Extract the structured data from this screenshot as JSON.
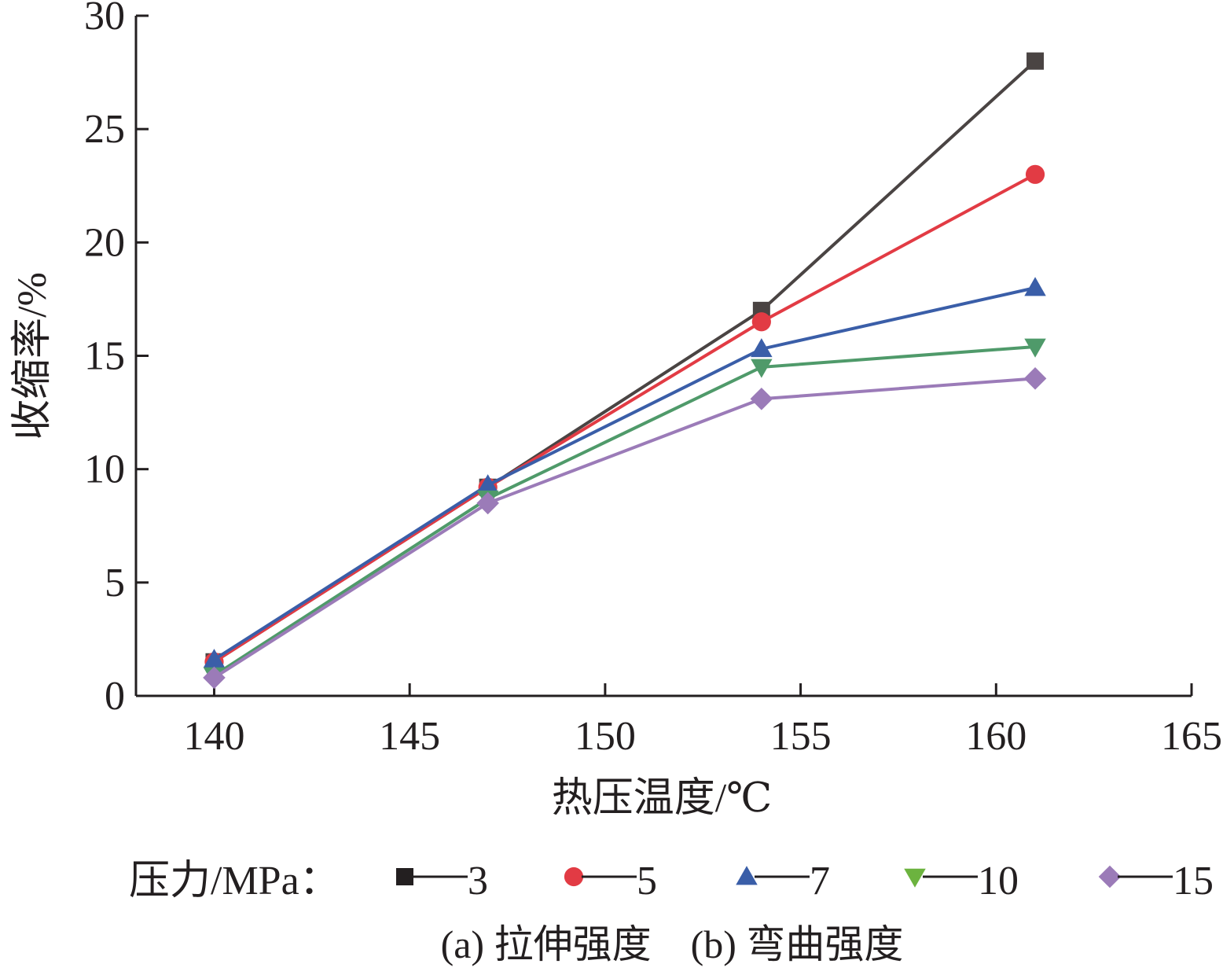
{
  "chart_data": {
    "type": "line",
    "xlabel": "热压温度/℃",
    "ylabel": "收缩率/%",
    "xlim": [
      138,
      165
    ],
    "ylim": [
      0,
      30
    ],
    "x_ticks": [
      "140",
      "145",
      "150",
      "155",
      "160",
      "165"
    ],
    "y_ticks": [
      "0",
      "5",
      "10",
      "15",
      "20",
      "25",
      "30"
    ],
    "x": [
      140,
      147,
      154,
      161
    ],
    "grid": false,
    "legend_title": "压力/MPa：",
    "legend_placement": "bottom",
    "series": [
      {
        "name": "3",
        "color": "#4a4443",
        "marker": "square",
        "values": [
          1.5,
          9.2,
          17.0,
          28.0
        ]
      },
      {
        "name": "5",
        "color": "#e23b44",
        "marker": "circle",
        "values": [
          1.5,
          9.2,
          16.5,
          23.0
        ]
      },
      {
        "name": "7",
        "color": "#3a5ea8",
        "marker": "triangle-up",
        "values": [
          1.6,
          9.3,
          15.3,
          18.0
        ]
      },
      {
        "name": "10",
        "color": "#4f9a6a",
        "marker": "triangle-down",
        "values": [
          0.9,
          8.7,
          14.5,
          15.4
        ]
      },
      {
        "name": "15",
        "color": "#9b7bb8",
        "marker": "diamond",
        "values": [
          0.8,
          8.5,
          13.1,
          14.0
        ]
      }
    ],
    "legend_marker_colors": {
      "3": "#231f20",
      "5": "#e23b44",
      "7": "#3a5ea8",
      "10": "#6cb33f",
      "15": "#9b7bb8"
    },
    "caption": "(a) 拉伸强度　(b) 弯曲强度"
  }
}
